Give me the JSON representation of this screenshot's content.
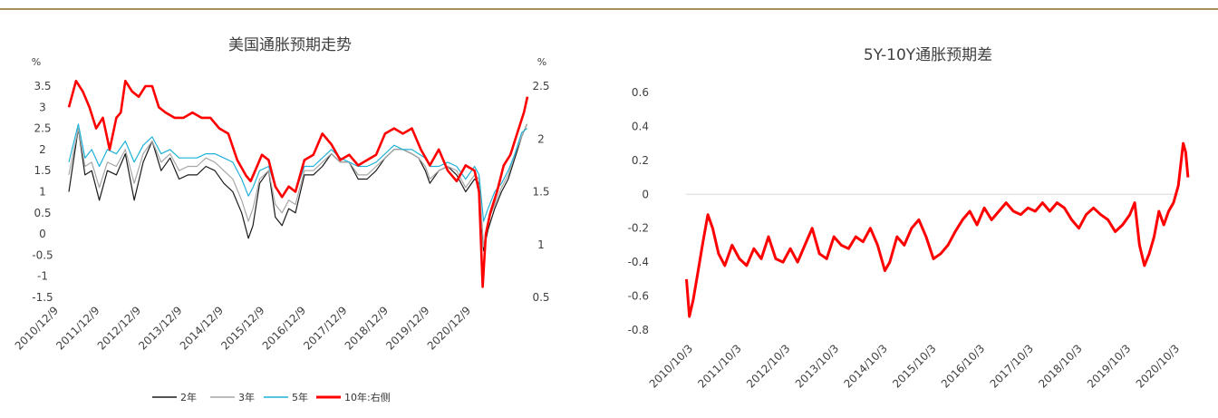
{
  "colors": {
    "s2": "#1a1a1a",
    "s3": "#a6a6a6",
    "s5": "#1fb2d9",
    "s10": "#ff0000",
    "rule": "#a6905a"
  },
  "chart_data": [
    {
      "type": "line",
      "title": "美国通胀预期走势",
      "ylabel": "%",
      "y2label": "%",
      "ylim": [
        -1.5,
        3.5
      ],
      "y_ticks": [
        "3.5",
        "3",
        "2.5",
        "2",
        "1.5",
        "1",
        "0.5",
        "0",
        "-0.5",
        "-1",
        "-1.5"
      ],
      "y2lim": [
        0.5,
        2.5
      ],
      "y2_ticks": [
        "2.5",
        "2",
        "1.5",
        "1",
        "0.5"
      ],
      "x_ticks": [
        "2010/12/9",
        "2011/12/9",
        "2012/12/9",
        "2013/12/9",
        "2014/12/9",
        "2015/12/9",
        "2016/12/9",
        "2017/12/9",
        "2018/12/9",
        "2019/12/9",
        "2020/12/9"
      ],
      "x_range": [
        2010.92,
        2021.2
      ],
      "legend_position": "bottom",
      "series": [
        {
          "name": "2年",
          "axis": "left",
          "x": [
            2010.94,
            2011.15,
            2011.3,
            2011.45,
            2011.62,
            2011.8,
            2012.0,
            2012.2,
            2012.4,
            2012.6,
            2012.8,
            2013.0,
            2013.2,
            2013.4,
            2013.6,
            2013.8,
            2014.0,
            2014.2,
            2014.4,
            2014.6,
            2014.8,
            2014.95,
            2015.05,
            2015.2,
            2015.4,
            2015.55,
            2015.7,
            2015.85,
            2016.0,
            2016.2,
            2016.4,
            2016.6,
            2016.8,
            2017.0,
            2017.2,
            2017.4,
            2017.6,
            2017.8,
            2018.0,
            2018.2,
            2018.4,
            2018.6,
            2018.75,
            2018.9,
            2019.0,
            2019.2,
            2019.4,
            2019.6,
            2019.8,
            2020.0,
            2020.1,
            2020.2,
            2020.3,
            2020.45,
            2020.6,
            2020.75,
            2020.9,
            2021.05,
            2021.17
          ],
          "y": [
            1.0,
            2.5,
            1.4,
            1.5,
            0.8,
            1.5,
            1.4,
            1.9,
            0.8,
            1.7,
            2.2,
            1.5,
            1.8,
            1.3,
            1.4,
            1.4,
            1.6,
            1.5,
            1.2,
            1.0,
            0.5,
            -0.1,
            0.2,
            1.2,
            1.5,
            0.4,
            0.2,
            0.6,
            0.5,
            1.4,
            1.4,
            1.6,
            1.9,
            1.7,
            1.7,
            1.3,
            1.3,
            1.5,
            1.8,
            2.0,
            2.0,
            1.9,
            1.8,
            1.5,
            1.2,
            1.5,
            1.6,
            1.4,
            1.0,
            1.3,
            1.2,
            -0.4,
            0.1,
            0.6,
            1.0,
            1.3,
            1.8,
            2.3,
            2.6
          ]
        },
        {
          "name": "3年",
          "axis": "left",
          "x": [
            2010.94,
            2011.15,
            2011.3,
            2011.45,
            2011.62,
            2011.8,
            2012.0,
            2012.2,
            2012.4,
            2012.6,
            2012.8,
            2013.0,
            2013.2,
            2013.4,
            2013.6,
            2013.8,
            2014.0,
            2014.2,
            2014.4,
            2014.6,
            2014.8,
            2014.95,
            2015.05,
            2015.2,
            2015.4,
            2015.55,
            2015.7,
            2015.85,
            2016.0,
            2016.2,
            2016.4,
            2016.6,
            2016.8,
            2017.0,
            2017.2,
            2017.4,
            2017.6,
            2017.8,
            2018.0,
            2018.2,
            2018.4,
            2018.6,
            2018.75,
            2018.9,
            2019.0,
            2019.2,
            2019.4,
            2019.6,
            2019.8,
            2020.0,
            2020.1,
            2020.2,
            2020.3,
            2020.45,
            2020.6,
            2020.75,
            2020.9,
            2021.05,
            2021.17
          ],
          "y": [
            1.4,
            2.5,
            1.6,
            1.7,
            1.1,
            1.7,
            1.6,
            2.0,
            1.2,
            1.9,
            2.2,
            1.7,
            1.9,
            1.5,
            1.6,
            1.6,
            1.8,
            1.7,
            1.5,
            1.3,
            0.8,
            0.3,
            0.6,
            1.3,
            1.5,
            0.7,
            0.5,
            0.8,
            0.7,
            1.5,
            1.5,
            1.7,
            1.9,
            1.7,
            1.7,
            1.4,
            1.4,
            1.6,
            1.8,
            2.0,
            2.0,
            1.9,
            1.8,
            1.6,
            1.3,
            1.5,
            1.6,
            1.5,
            1.1,
            1.4,
            1.3,
            -0.3,
            0.3,
            0.7,
            1.1,
            1.4,
            1.9,
            2.3,
            2.6
          ]
        },
        {
          "name": "5年",
          "axis": "left",
          "x": [
            2010.94,
            2011.15,
            2011.3,
            2011.45,
            2011.62,
            2011.8,
            2012.0,
            2012.2,
            2012.4,
            2012.6,
            2012.8,
            2013.0,
            2013.2,
            2013.4,
            2013.6,
            2013.8,
            2014.0,
            2014.2,
            2014.4,
            2014.6,
            2014.8,
            2014.95,
            2015.05,
            2015.2,
            2015.4,
            2015.55,
            2015.7,
            2015.85,
            2016.0,
            2016.2,
            2016.4,
            2016.6,
            2016.8,
            2017.0,
            2017.2,
            2017.4,
            2017.6,
            2017.8,
            2018.0,
            2018.2,
            2018.4,
            2018.6,
            2018.75,
            2018.9,
            2019.0,
            2019.2,
            2019.4,
            2019.6,
            2019.8,
            2020.0,
            2020.1,
            2020.2,
            2020.3,
            2020.45,
            2020.6,
            2020.75,
            2020.9,
            2021.05,
            2021.17
          ],
          "y": [
            1.7,
            2.6,
            1.8,
            2.0,
            1.6,
            2.0,
            1.9,
            2.2,
            1.7,
            2.1,
            2.3,
            1.9,
            2.0,
            1.8,
            1.8,
            1.8,
            1.9,
            1.9,
            1.8,
            1.7,
            1.3,
            0.9,
            1.1,
            1.5,
            1.6,
            1.1,
            0.9,
            1.1,
            1.0,
            1.6,
            1.6,
            1.8,
            2.0,
            1.8,
            1.7,
            1.6,
            1.6,
            1.7,
            1.9,
            2.1,
            2.0,
            2.0,
            1.9,
            1.8,
            1.6,
            1.6,
            1.7,
            1.6,
            1.3,
            1.6,
            1.4,
            0.3,
            0.6,
            1.0,
            1.2,
            1.5,
            1.9,
            2.4,
            2.5
          ]
        },
        {
          "name": "10年:右侧",
          "axis": "right",
          "x": [
            2010.94,
            2011.1,
            2011.25,
            2011.4,
            2011.55,
            2011.7,
            2011.85,
            2012.0,
            2012.1,
            2012.2,
            2012.35,
            2012.5,
            2012.65,
            2012.8,
            2012.95,
            2013.1,
            2013.3,
            2013.5,
            2013.7,
            2013.9,
            2014.1,
            2014.3,
            2014.5,
            2014.7,
            2014.9,
            2015.0,
            2015.1,
            2015.25,
            2015.4,
            2015.55,
            2015.7,
            2015.85,
            2016.0,
            2016.2,
            2016.4,
            2016.6,
            2016.8,
            2017.0,
            2017.2,
            2017.4,
            2017.6,
            2017.8,
            2018.0,
            2018.2,
            2018.4,
            2018.6,
            2018.8,
            2019.0,
            2019.2,
            2019.4,
            2019.6,
            2019.8,
            2020.0,
            2020.1,
            2020.18,
            2020.25,
            2020.35,
            2020.5,
            2020.65,
            2020.8,
            2020.95,
            2021.1,
            2021.18
          ],
          "y": [
            2.3,
            2.55,
            2.45,
            2.3,
            2.1,
            2.2,
            1.9,
            2.2,
            2.25,
            2.55,
            2.45,
            2.4,
            2.5,
            2.5,
            2.3,
            2.25,
            2.2,
            2.2,
            2.25,
            2.2,
            2.2,
            2.1,
            2.05,
            1.8,
            1.65,
            1.6,
            1.7,
            1.85,
            1.8,
            1.55,
            1.45,
            1.55,
            1.5,
            1.8,
            1.85,
            2.05,
            1.95,
            1.8,
            1.85,
            1.75,
            1.8,
            1.85,
            2.05,
            2.1,
            2.05,
            2.1,
            1.9,
            1.75,
            1.9,
            1.7,
            1.6,
            1.75,
            1.7,
            1.5,
            0.6,
            1.1,
            1.3,
            1.5,
            1.75,
            1.85,
            2.05,
            2.25,
            2.4
          ]
        }
      ]
    },
    {
      "type": "line",
      "title": "5Y-10Y通胀预期差",
      "ylim": [
        -0.8,
        0.6
      ],
      "y_ticks": [
        "0.6",
        "0.4",
        "0.2",
        "0",
        "-0.2",
        "-0.4",
        "-0.6",
        "-0.8"
      ],
      "x_ticks": [
        "2010/10/3",
        "2011/10/3",
        "2012/10/3",
        "2013/10/3",
        "2014/10/3",
        "2015/10/3",
        "2016/10/3",
        "2017/10/3",
        "2018/10/3",
        "2019/10/3",
        "2020/10/3"
      ],
      "x_range": [
        2010.75,
        2021.12
      ],
      "series": [
        {
          "name": "",
          "x": [
            2010.76,
            2010.82,
            2010.9,
            2011.0,
            2011.1,
            2011.2,
            2011.3,
            2011.42,
            2011.55,
            2011.7,
            2011.85,
            2012.0,
            2012.15,
            2012.3,
            2012.45,
            2012.6,
            2012.75,
            2012.9,
            2013.05,
            2013.2,
            2013.35,
            2013.5,
            2013.65,
            2013.8,
            2013.95,
            2014.1,
            2014.25,
            2014.4,
            2014.55,
            2014.7,
            2014.85,
            2014.95,
            2015.1,
            2015.25,
            2015.4,
            2015.55,
            2015.7,
            2015.85,
            2016.0,
            2016.15,
            2016.3,
            2016.45,
            2016.6,
            2016.75,
            2016.9,
            2017.05,
            2017.2,
            2017.35,
            2017.5,
            2017.65,
            2017.8,
            2017.95,
            2018.1,
            2018.25,
            2018.4,
            2018.55,
            2018.7,
            2018.85,
            2019.0,
            2019.15,
            2019.3,
            2019.45,
            2019.6,
            2019.75,
            2019.9,
            2020.0,
            2020.1,
            2020.2,
            2020.3,
            2020.4,
            2020.5,
            2020.6,
            2020.7,
            2020.8,
            2020.9,
            2021.0,
            2021.05,
            2021.1
          ],
          "y": [
            -0.5,
            -0.72,
            -0.62,
            -0.45,
            -0.28,
            -0.12,
            -0.2,
            -0.35,
            -0.42,
            -0.3,
            -0.38,
            -0.42,
            -0.32,
            -0.38,
            -0.25,
            -0.38,
            -0.4,
            -0.32,
            -0.4,
            -0.3,
            -0.2,
            -0.35,
            -0.38,
            -0.25,
            -0.3,
            -0.32,
            -0.25,
            -0.28,
            -0.2,
            -0.3,
            -0.45,
            -0.4,
            -0.25,
            -0.3,
            -0.2,
            -0.15,
            -0.25,
            -0.38,
            -0.35,
            -0.3,
            -0.22,
            -0.15,
            -0.1,
            -0.18,
            -0.08,
            -0.15,
            -0.1,
            -0.05,
            -0.1,
            -0.12,
            -0.08,
            -0.1,
            -0.05,
            -0.1,
            -0.05,
            -0.08,
            -0.15,
            -0.2,
            -0.12,
            -0.08,
            -0.12,
            -0.15,
            -0.22,
            -0.18,
            -0.12,
            -0.05,
            -0.3,
            -0.42,
            -0.35,
            -0.25,
            -0.1,
            -0.18,
            -0.1,
            -0.05,
            0.05,
            0.3,
            0.25,
            0.1
          ]
        }
      ]
    }
  ]
}
